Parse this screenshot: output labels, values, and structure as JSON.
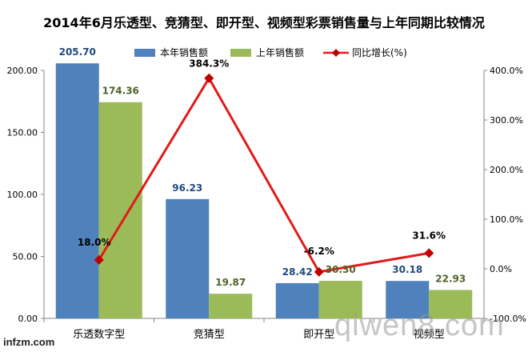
{
  "chart_data": {
    "type": "bar",
    "title": "2014年6月乐透型、竞猜型、即开型、视频型彩票销售量与上年同期比较情况",
    "categories": [
      "乐透数字型",
      "竞猜型",
      "即开型",
      "视频型"
    ],
    "series": [
      {
        "name": "本年销售额",
        "kind": "bar",
        "axis": "left",
        "color": "#4f81bd",
        "values": [
          205.7,
          96.23,
          28.42,
          30.18
        ],
        "labels": [
          "205.70",
          "96.23",
          "28.42",
          "30.18"
        ]
      },
      {
        "name": "上年销售额",
        "kind": "bar",
        "axis": "left",
        "color": "#9bbb59",
        "values": [
          174.36,
          19.87,
          30.3,
          22.93
        ],
        "labels": [
          "174.36",
          "19.87",
          "30.30",
          "22.93"
        ]
      },
      {
        "name": "同比增长(%)",
        "kind": "line",
        "axis": "right",
        "color": "#e21a1a",
        "values": [
          18.0,
          384.3,
          -6.2,
          31.6
        ],
        "labels": [
          "18.0%",
          "384.3%",
          "-6.2%",
          "31.6%"
        ]
      }
    ],
    "left_axis": {
      "min": 0,
      "max": 200,
      "step": 50,
      "ticks": [
        "0.00",
        "50.00",
        "100.00",
        "150.00",
        "200.00"
      ]
    },
    "right_axis": {
      "min": -100,
      "max": 400,
      "step": 100,
      "ticks": [
        "-100.0%",
        "0.0%",
        "100.0%",
        "200.0%",
        "300.0%",
        "400.0%"
      ]
    },
    "legend_position": "top",
    "grid": false
  },
  "watermarks": {
    "site_large": "qiwen8.com",
    "site_small": "infzm.com"
  }
}
